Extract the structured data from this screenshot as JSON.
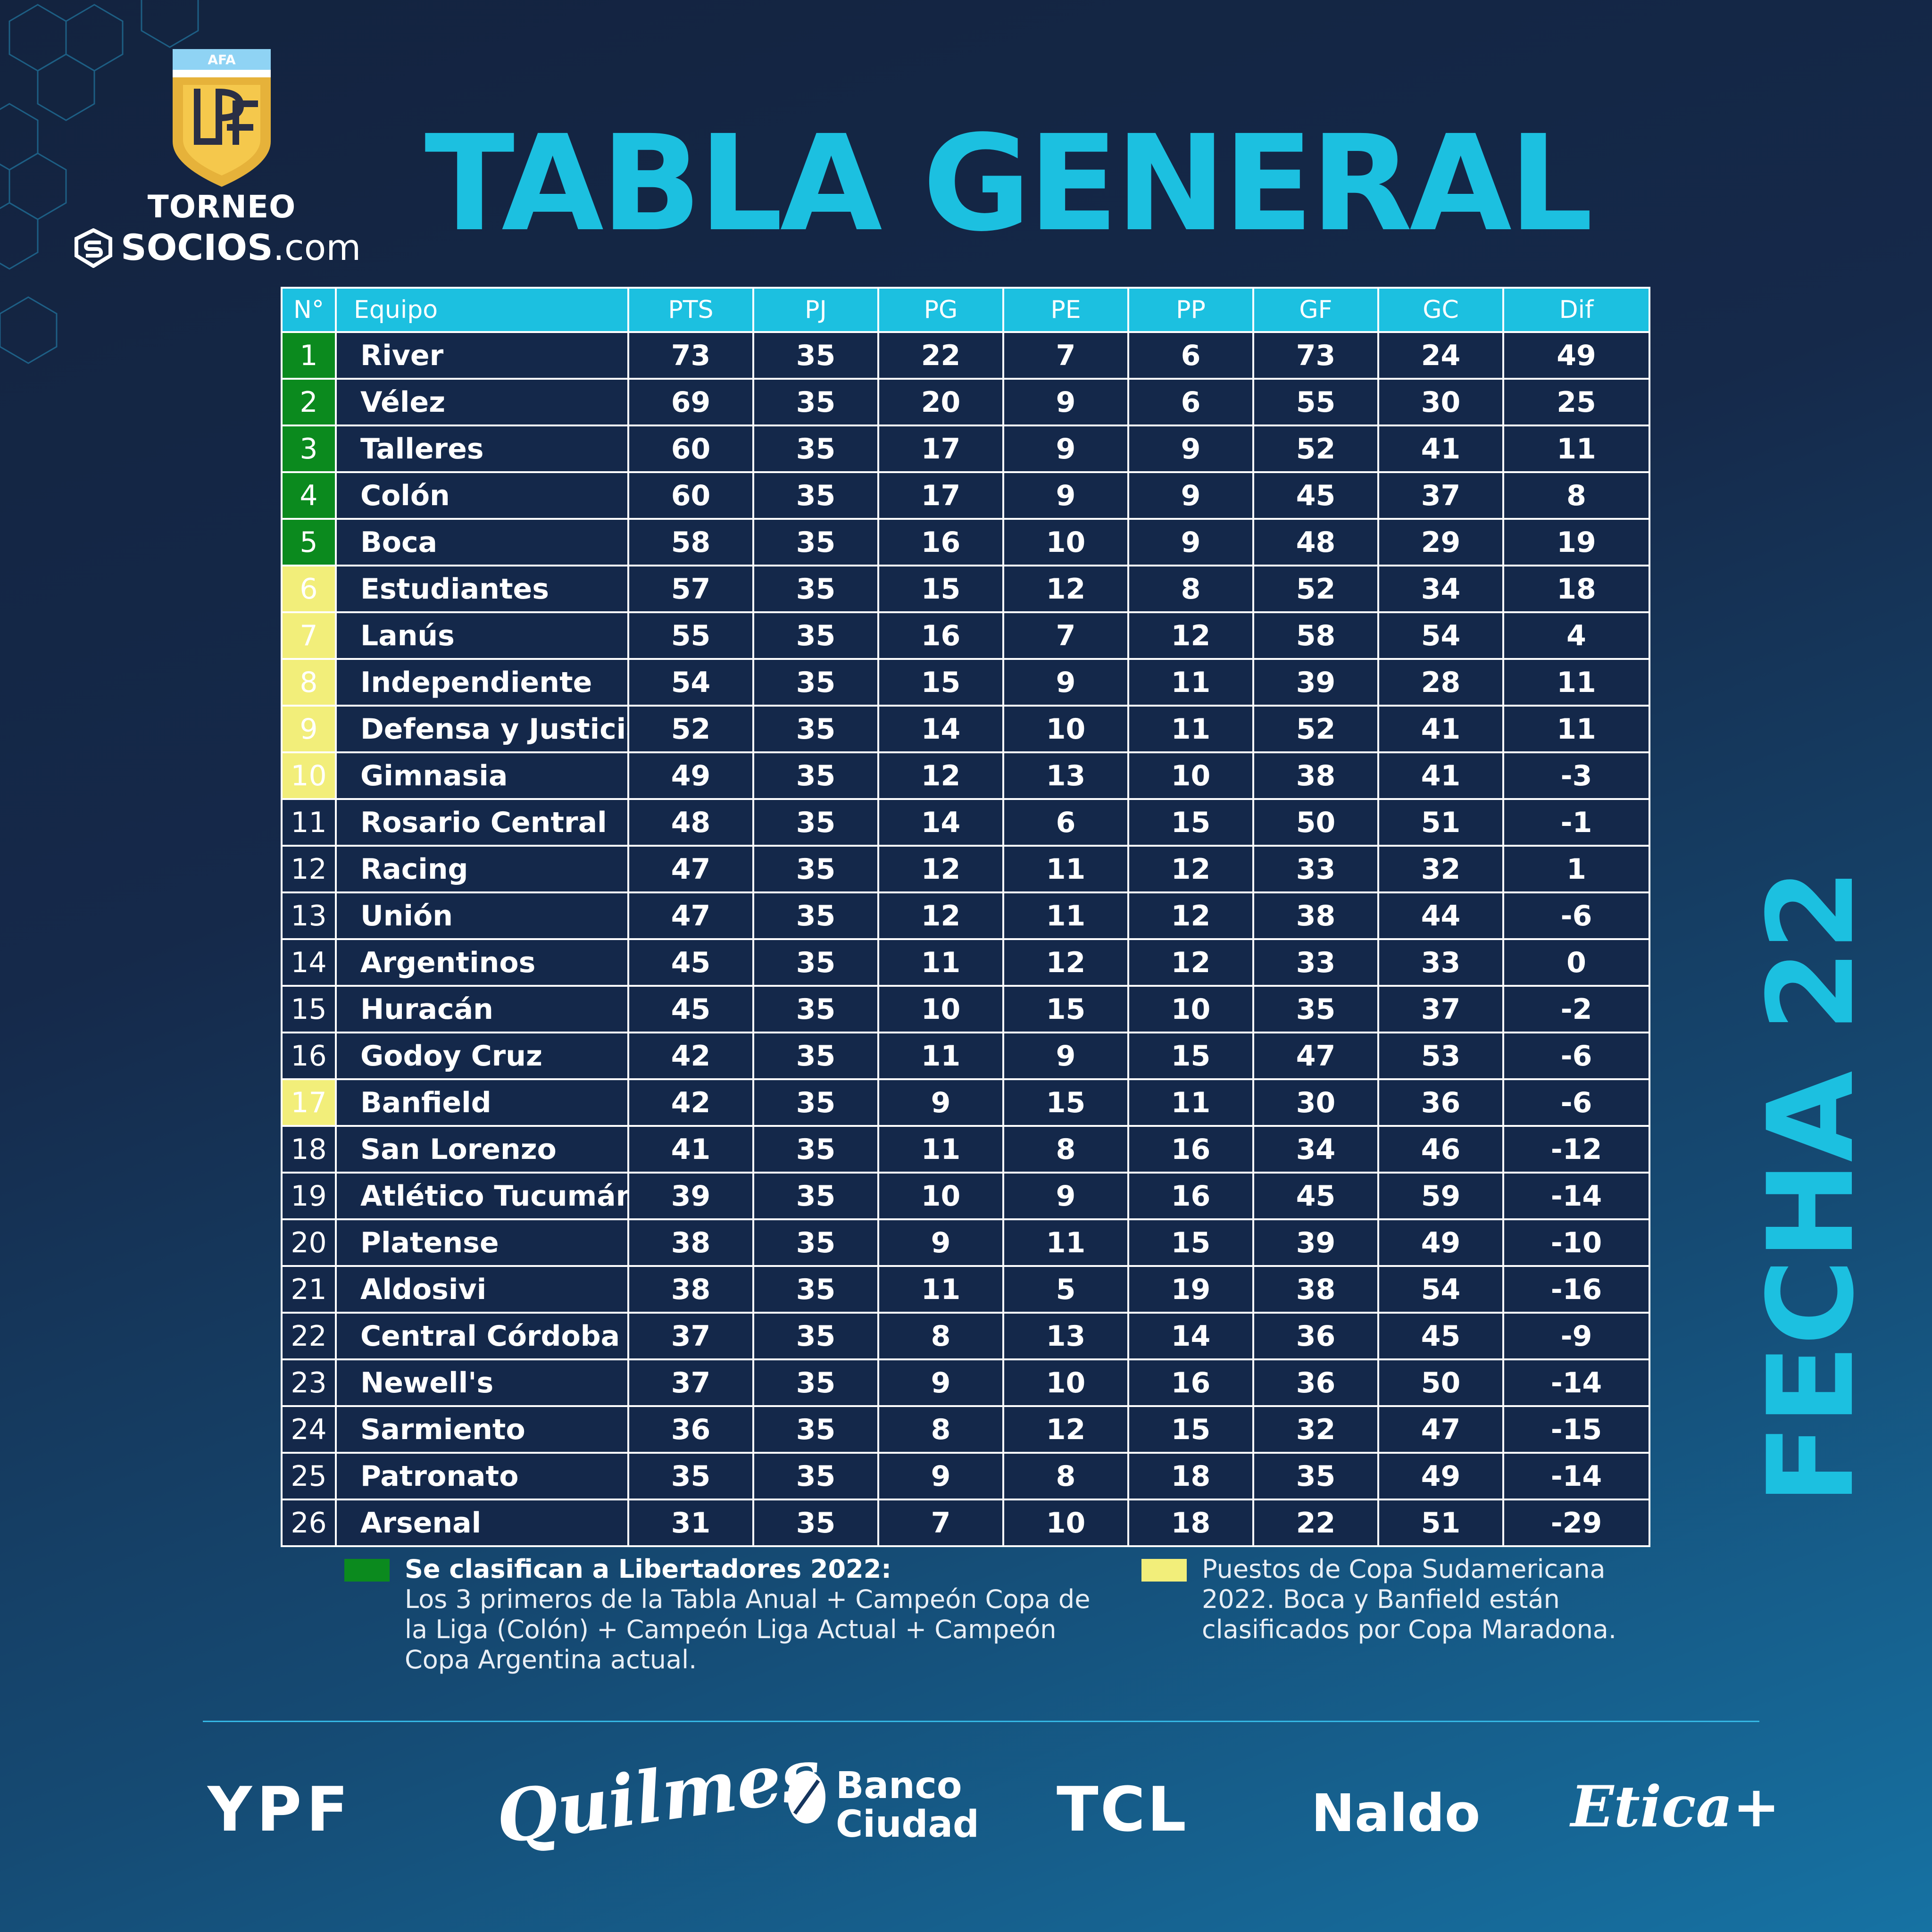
{
  "logo": {
    "federation": "AFA",
    "monogram": "LPF",
    "line1": "TORNEO",
    "line2_bold": "SOCIOS",
    "line2_suffix": ".com"
  },
  "title": "TABLA GENERAL",
  "side_title": "FECHA 22",
  "table": {
    "headers": [
      "N°",
      "Equipo",
      "PTS",
      "PJ",
      "PG",
      "PE",
      "PP",
      "GF",
      "GC",
      "Dif"
    ],
    "rows": [
      {
        "pos": "1",
        "team": "River",
        "pts": "73",
        "pj": "35",
        "pg": "22",
        "pe": "7",
        "pp": "6",
        "gf": "73",
        "gc": "24",
        "dif": "49",
        "zone": "lib"
      },
      {
        "pos": "2",
        "team": "Vélez",
        "pts": "69",
        "pj": "35",
        "pg": "20",
        "pe": "9",
        "pp": "6",
        "gf": "55",
        "gc": "30",
        "dif": "25",
        "zone": "lib"
      },
      {
        "pos": "3",
        "team": "Talleres",
        "pts": "60",
        "pj": "35",
        "pg": "17",
        "pe": "9",
        "pp": "9",
        "gf": "52",
        "gc": "41",
        "dif": "11",
        "zone": "lib"
      },
      {
        "pos": "4",
        "team": "Colón",
        "pts": "60",
        "pj": "35",
        "pg": "17",
        "pe": "9",
        "pp": "9",
        "gf": "45",
        "gc": "37",
        "dif": "8",
        "zone": "lib"
      },
      {
        "pos": "5",
        "team": "Boca",
        "pts": "58",
        "pj": "35",
        "pg": "16",
        "pe": "10",
        "pp": "9",
        "gf": "48",
        "gc": "29",
        "dif": "19",
        "zone": "lib"
      },
      {
        "pos": "6",
        "team": "Estudiantes",
        "pts": "57",
        "pj": "35",
        "pg": "15",
        "pe": "12",
        "pp": "8",
        "gf": "52",
        "gc": "34",
        "dif": "18",
        "zone": "sud"
      },
      {
        "pos": "7",
        "team": "Lanús",
        "pts": "55",
        "pj": "35",
        "pg": "16",
        "pe": "7",
        "pp": "12",
        "gf": "58",
        "gc": "54",
        "dif": "4",
        "zone": "sud"
      },
      {
        "pos": "8",
        "team": "Independiente",
        "pts": "54",
        "pj": "35",
        "pg": "15",
        "pe": "9",
        "pp": "11",
        "gf": "39",
        "gc": "28",
        "dif": "11",
        "zone": "sud"
      },
      {
        "pos": "9",
        "team": "Defensa y Justicia",
        "pts": "52",
        "pj": "35",
        "pg": "14",
        "pe": "10",
        "pp": "11",
        "gf": "52",
        "gc": "41",
        "dif": "11",
        "zone": "sud"
      },
      {
        "pos": "10",
        "team": "Gimnasia",
        "pts": "49",
        "pj": "35",
        "pg": "12",
        "pe": "13",
        "pp": "10",
        "gf": "38",
        "gc": "41",
        "dif": "-3",
        "zone": "sud"
      },
      {
        "pos": "11",
        "team": "Rosario Central",
        "pts": "48",
        "pj": "35",
        "pg": "14",
        "pe": "6",
        "pp": "15",
        "gf": "50",
        "gc": "51",
        "dif": "-1",
        "zone": ""
      },
      {
        "pos": "12",
        "team": "Racing",
        "pts": "47",
        "pj": "35",
        "pg": "12",
        "pe": "11",
        "pp": "12",
        "gf": "33",
        "gc": "32",
        "dif": "1",
        "zone": ""
      },
      {
        "pos": "13",
        "team": "Unión",
        "pts": "47",
        "pj": "35",
        "pg": "12",
        "pe": "11",
        "pp": "12",
        "gf": "38",
        "gc": "44",
        "dif": "-6",
        "zone": ""
      },
      {
        "pos": "14",
        "team": "Argentinos",
        "pts": "45",
        "pj": "35",
        "pg": "11",
        "pe": "12",
        "pp": "12",
        "gf": "33",
        "gc": "33",
        "dif": "0",
        "zone": ""
      },
      {
        "pos": "15",
        "team": "Huracán",
        "pts": "45",
        "pj": "35",
        "pg": "10",
        "pe": "15",
        "pp": "10",
        "gf": "35",
        "gc": "37",
        "dif": "-2",
        "zone": ""
      },
      {
        "pos": "16",
        "team": "Godoy Cruz",
        "pts": "42",
        "pj": "35",
        "pg": "11",
        "pe": "9",
        "pp": "15",
        "gf": "47",
        "gc": "53",
        "dif": "-6",
        "zone": ""
      },
      {
        "pos": "17",
        "team": "Banfield",
        "pts": "42",
        "pj": "35",
        "pg": "9",
        "pe": "15",
        "pp": "11",
        "gf": "30",
        "gc": "36",
        "dif": "-6",
        "zone": "sud"
      },
      {
        "pos": "18",
        "team": "San Lorenzo",
        "pts": "41",
        "pj": "35",
        "pg": "11",
        "pe": "8",
        "pp": "16",
        "gf": "34",
        "gc": "46",
        "dif": "-12",
        "zone": ""
      },
      {
        "pos": "19",
        "team": "Atlético Tucumán",
        "pts": "39",
        "pj": "35",
        "pg": "10",
        "pe": "9",
        "pp": "16",
        "gf": "45",
        "gc": "59",
        "dif": "-14",
        "zone": ""
      },
      {
        "pos": "20",
        "team": "Platense",
        "pts": "38",
        "pj": "35",
        "pg": "9",
        "pe": "11",
        "pp": "15",
        "gf": "39",
        "gc": "49",
        "dif": "-10",
        "zone": ""
      },
      {
        "pos": "21",
        "team": "Aldosivi",
        "pts": "38",
        "pj": "35",
        "pg": "11",
        "pe": "5",
        "pp": "19",
        "gf": "38",
        "gc": "54",
        "dif": "-16",
        "zone": ""
      },
      {
        "pos": "22",
        "team": "Central Córdoba",
        "pts": "37",
        "pj": "35",
        "pg": "8",
        "pe": "13",
        "pp": "14",
        "gf": "36",
        "gc": "45",
        "dif": "-9",
        "zone": ""
      },
      {
        "pos": "23",
        "team": "Newell's",
        "pts": "37",
        "pj": "35",
        "pg": "9",
        "pe": "10",
        "pp": "16",
        "gf": "36",
        "gc": "50",
        "dif": "-14",
        "zone": ""
      },
      {
        "pos": "24",
        "team": "Sarmiento",
        "pts": "36",
        "pj": "35",
        "pg": "8",
        "pe": "12",
        "pp": "15",
        "gf": "32",
        "gc": "47",
        "dif": "-15",
        "zone": ""
      },
      {
        "pos": "25",
        "team": "Patronato",
        "pts": "35",
        "pj": "35",
        "pg": "9",
        "pe": "8",
        "pp": "18",
        "gf": "35",
        "gc": "49",
        "dif": "-14",
        "zone": ""
      },
      {
        "pos": "26",
        "team": "Arsenal",
        "pts": "31",
        "pj": "35",
        "pg": "7",
        "pe": "10",
        "pp": "18",
        "gf": "22",
        "gc": "51",
        "dif": "-29",
        "zone": ""
      }
    ]
  },
  "legend": {
    "libertadores": {
      "color": "#0b8a1e",
      "title": "Se clasifican a Libertadores 2022:",
      "text": "Los 3 primeros de la Tabla Anual  + Campeón Copa de la Liga (Colón) + Campeón Liga Actual + Campeón Copa Argentina actual."
    },
    "sudamericana": {
      "color": "#f2ee7a",
      "text": "Puestos de Copa Sudamericana 2022. Boca y Banfield están clasificados por Copa Maradona."
    }
  },
  "sponsors": {
    "ypf": "YPF",
    "quilmes": "Quilmes",
    "banco_line1": "Banco",
    "banco_line2": "Ciudad",
    "tcl": "TCL",
    "naldo": "Naldo",
    "etica": "Etica+"
  },
  "colors": {
    "accent": "#1cc0e0",
    "background_dark": "#13233f",
    "background_light": "#1672a3",
    "row_bg": "#14284a"
  }
}
